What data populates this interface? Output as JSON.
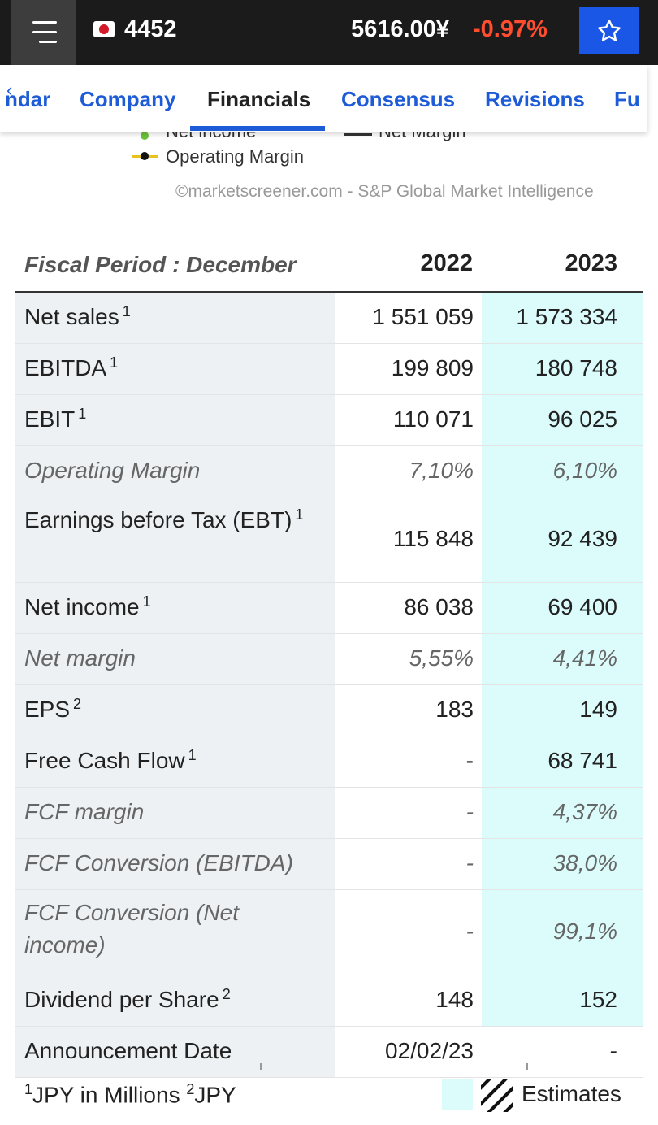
{
  "header": {
    "ticker": "4452",
    "price": "5616.00¥",
    "change": "-0.97%",
    "change_color": "#ff4d2e",
    "accent": "#1a57e6"
  },
  "tabs": [
    {
      "label": "ndar"
    },
    {
      "label": "Company"
    },
    {
      "label": "Financials",
      "active": true
    },
    {
      "label": "Consensus"
    },
    {
      "label": "Revisions"
    },
    {
      "label": "Fu"
    }
  ],
  "legend": {
    "items": [
      {
        "label": "Net income",
        "color": "#6cc23a"
      },
      {
        "label": "Net Margin",
        "color": "#333333"
      },
      {
        "label": "Operating Margin",
        "color": "#e8c31c"
      }
    ],
    "source": "©marketscreener.com - S&P Global Market Intelligence"
  },
  "table": {
    "period_label": "Fiscal Period : December",
    "years": [
      "2022",
      "2023"
    ],
    "rows": [
      {
        "label": "Net sales",
        "note": "1",
        "v2022": "1 551 059",
        "v2023": "1 573 334"
      },
      {
        "label": "EBITDA",
        "note": "1",
        "v2022": "199 809",
        "v2023": "180 748"
      },
      {
        "label": "EBIT",
        "note": "1",
        "v2022": "110 071",
        "v2023": "96 025"
      },
      {
        "label": "Operating Margin",
        "note": "",
        "v2022": "7,10%",
        "v2023": "6,10%",
        "italic": true
      },
      {
        "label": "Earnings before Tax (EBT)",
        "note": "1",
        "v2022": "115 848",
        "v2023": "92 439"
      },
      {
        "label": "Net income",
        "note": "1",
        "v2022": "86 038",
        "v2023": "69 400"
      },
      {
        "label": "Net margin",
        "note": "",
        "v2022": "5,55%",
        "v2023": "4,41%",
        "italic": true
      },
      {
        "label": "EPS",
        "note": "2",
        "v2022": "183",
        "v2023": "149"
      },
      {
        "label": "Free Cash Flow",
        "note": "1",
        "v2022": "-",
        "v2023": "68 741"
      },
      {
        "label": "FCF margin",
        "note": "",
        "v2022": "-",
        "v2023": "4,37%",
        "italic": true
      },
      {
        "label": "FCF Conversion (EBITDA)",
        "note": "",
        "v2022": "-",
        "v2023": "38,0%",
        "italic": true
      },
      {
        "label": "FCF Conversion (Net income)",
        "note": "",
        "v2022": "-",
        "v2023": "99,1%",
        "italic": true
      },
      {
        "label": "Dividend per Share",
        "note": "2",
        "v2022": "148",
        "v2023": "152"
      },
      {
        "label": "Announcement Date",
        "note": "",
        "v2022": "02/02/23",
        "v2023": "-",
        "plain": true
      }
    ]
  },
  "footer": {
    "note1_mark": "1",
    "note1": "JPY in Millions",
    "note2_mark": "2",
    "note2": "JPY",
    "estimates_label": "Estimates",
    "estimate_color": "#dcfcfc"
  }
}
